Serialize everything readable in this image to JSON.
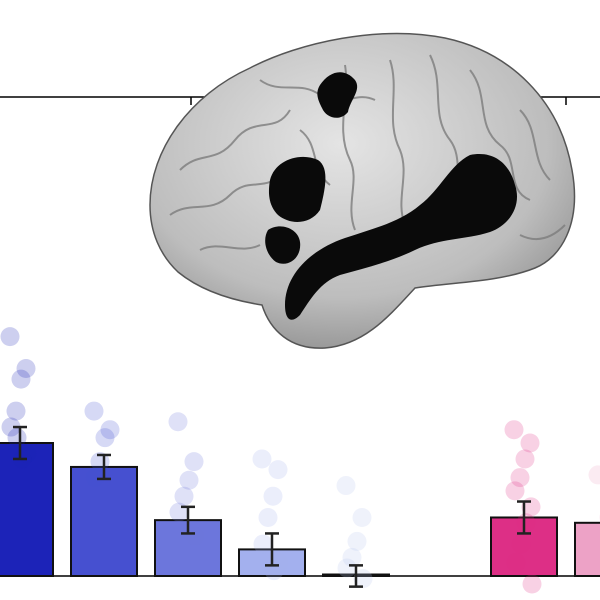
{
  "chart_data": {
    "type": "bar",
    "title": "",
    "xlabel": "",
    "ylabel": "",
    "ylim": [
      0,
      1
    ],
    "grid": false,
    "legend": "none",
    "categories": [
      "",
      "",
      "",
      "",
      "",
      "",
      ""
    ],
    "values": [
      0.5,
      0.41,
      0.21,
      0.1,
      0.0,
      0.22,
      0.2
    ],
    "errors": [
      0.06,
      0.045,
      0.05,
      0.06,
      0.04,
      0.06,
      0.0
    ],
    "colors": [
      "#1c23b8",
      "#4650d0",
      "#6c76dc",
      "#a3b0ee",
      "#b8c4ee",
      "#dd2f86",
      "#eda2c6"
    ],
    "scatter_points": [
      [
        0.9,
        0.78,
        0.74,
        0.62,
        0.56,
        0.46,
        0.44,
        0.52
      ],
      [
        0.62,
        0.55,
        0.52,
        0.43,
        0.37
      ],
      [
        0.58,
        0.43,
        0.36,
        0.3,
        0.24,
        0.15
      ],
      [
        0.44,
        0.4,
        0.3,
        0.22,
        0.12,
        0.05,
        0.02
      ],
      [
        0.34,
        0.22,
        0.13,
        0.07,
        0.03,
        -0.01
      ],
      [
        0.55,
        0.5,
        0.44,
        0.37,
        0.32,
        0.26,
        0.2,
        0.12,
        0.05,
        -0.03
      ],
      [
        0.38,
        0.3,
        0.22
      ]
    ]
  },
  "brain": {
    "surface_color": "#b9b9b9",
    "activation_color": "#0a0a0a"
  }
}
